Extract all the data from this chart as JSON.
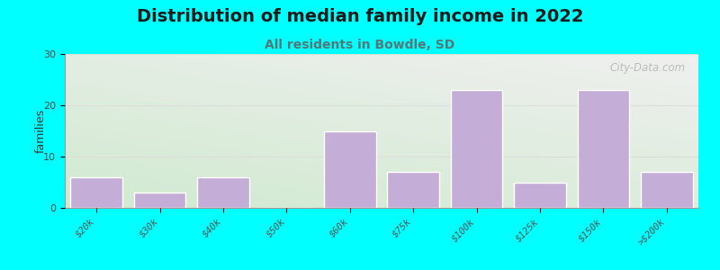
{
  "title": "Distribution of median family income in 2022",
  "subtitle": "All residents in Bowdle, SD",
  "xtick_labels": [
    "$20k",
    "$30k",
    "$40k",
    "$50k",
    "$60k",
    "$75k",
    "$100k",
    "$125k",
    "$150k",
    ">$200k"
  ],
  "values": [
    6,
    3,
    6,
    0,
    15,
    7,
    23,
    5,
    23,
    7
  ],
  "bar_color": "#c4aed8",
  "bar_edge_color": "#ffffff",
  "ylabel": "families",
  "ylim": [
    0,
    30
  ],
  "yticks": [
    0,
    10,
    20,
    30
  ],
  "background_color": "#00ffff",
  "grad_top_color": "#f0f0ef",
  "grad_bottom_color": "#d0ead0",
  "title_fontsize": 14,
  "subtitle_fontsize": 10,
  "subtitle_color": "#557777",
  "watermark": "City-Data.com",
  "grid_color": "#dddddd"
}
